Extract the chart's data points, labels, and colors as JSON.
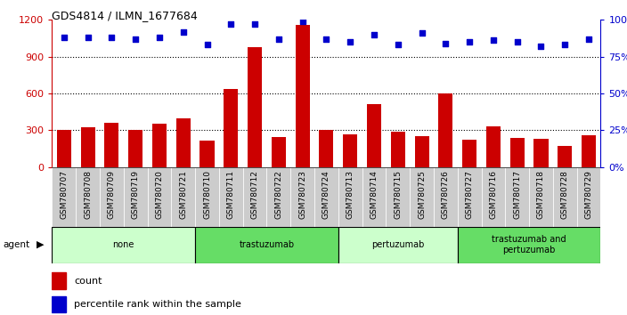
{
  "title": "GDS4814 / ILMN_1677684",
  "samples": [
    "GSM780707",
    "GSM780708",
    "GSM780709",
    "GSM780719",
    "GSM780720",
    "GSM780721",
    "GSM780710",
    "GSM780711",
    "GSM780712",
    "GSM780722",
    "GSM780723",
    "GSM780724",
    "GSM780713",
    "GSM780714",
    "GSM780715",
    "GSM780725",
    "GSM780726",
    "GSM780727",
    "GSM780716",
    "GSM780717",
    "GSM780718",
    "GSM780728",
    "GSM780729"
  ],
  "counts": [
    300,
    325,
    360,
    305,
    355,
    400,
    215,
    635,
    975,
    245,
    1160,
    300,
    265,
    510,
    290,
    250,
    600,
    225,
    330,
    235,
    230,
    175,
    255
  ],
  "percentiles": [
    88,
    88,
    88,
    87,
    88,
    92,
    83,
    97,
    97,
    87,
    99,
    87,
    85,
    90,
    83,
    91,
    84,
    85,
    86,
    85,
    82,
    83,
    87
  ],
  "groups": [
    {
      "label": "none",
      "start": 0,
      "end": 6,
      "color": "#ccffcc"
    },
    {
      "label": "trastuzumab",
      "start": 6,
      "end": 12,
      "color": "#66dd66"
    },
    {
      "label": "pertuzumab",
      "start": 12,
      "end": 17,
      "color": "#ccffcc"
    },
    {
      "label": "trastuzumab and\npertuzumab",
      "start": 17,
      "end": 23,
      "color": "#66dd66"
    }
  ],
  "bar_color": "#cc0000",
  "dot_color": "#0000cc",
  "left_ylim": [
    0,
    1200
  ],
  "left_yticks": [
    0,
    300,
    600,
    900,
    1200
  ],
  "right_ylim": [
    0,
    100
  ],
  "right_yticks": [
    0,
    25,
    50,
    75,
    100
  ],
  "background_color": "#ffffff",
  "tick_bg": "#cccccc"
}
